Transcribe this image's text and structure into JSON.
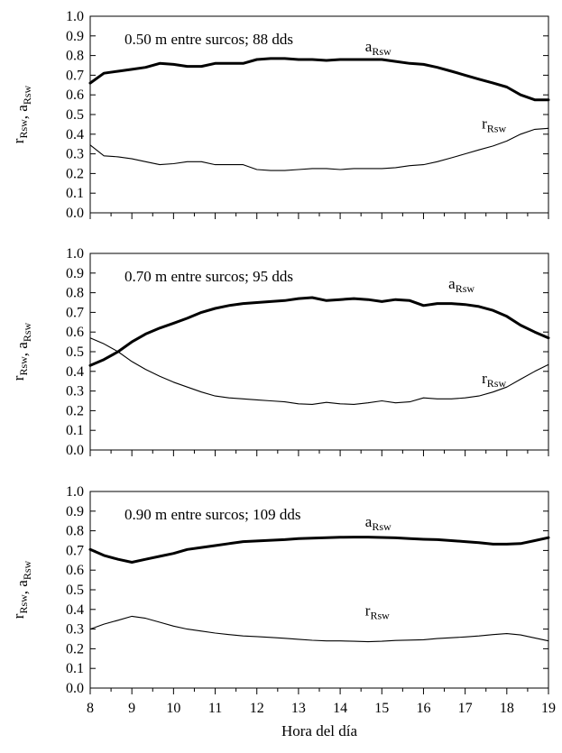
{
  "chart_data": [
    {
      "type": "line",
      "title": "0.50 m entre surcos; 88 dds",
      "ylabel": {
        "base1": "r",
        "sub1": "Rsw",
        "sep": ", ",
        "base2": "a",
        "sub2": "Rsw"
      },
      "xlabel": "",
      "xlim": [
        8,
        19
      ],
      "ylim": [
        0,
        1
      ],
      "xticks": [
        8,
        9,
        10,
        11,
        12,
        13,
        14,
        15,
        16,
        17,
        18,
        19
      ],
      "yticks": [
        "0.0",
        "0.1",
        "0.2",
        "0.3",
        "0.4",
        "0.5",
        "0.6",
        "0.7",
        "0.8",
        "0.9",
        "1.0"
      ],
      "series": [
        {
          "name": "aRsw",
          "label_base": "a",
          "label_sub": "Rsw",
          "label_at": [
            14.6,
            0.82
          ],
          "bold": true,
          "x": [
            8,
            8.33,
            8.67,
            9,
            9.33,
            9.67,
            10,
            10.33,
            10.67,
            11,
            11.33,
            11.67,
            12,
            12.33,
            12.67,
            13,
            13.33,
            13.67,
            14,
            14.33,
            14.67,
            15,
            15.33,
            15.67,
            16,
            16.33,
            16.67,
            17,
            17.33,
            17.67,
            18,
            18.33,
            18.67,
            19
          ],
          "y": [
            0.66,
            0.71,
            0.72,
            0.73,
            0.74,
            0.76,
            0.755,
            0.745,
            0.745,
            0.76,
            0.76,
            0.76,
            0.78,
            0.785,
            0.785,
            0.78,
            0.78,
            0.775,
            0.78,
            0.78,
            0.78,
            0.78,
            0.77,
            0.76,
            0.755,
            0.74,
            0.72,
            0.7,
            0.68,
            0.66,
            0.64,
            0.6,
            0.575,
            0.575
          ]
        },
        {
          "name": "rRsw",
          "label_base": "r",
          "label_sub": "Rsw",
          "label_at": [
            17.4,
            0.43
          ],
          "bold": false,
          "x": [
            8,
            8.33,
            8.67,
            9,
            9.33,
            9.67,
            10,
            10.33,
            10.67,
            11,
            11.33,
            11.67,
            12,
            12.33,
            12.67,
            13,
            13.33,
            13.67,
            14,
            14.33,
            14.67,
            15,
            15.33,
            15.67,
            16,
            16.33,
            16.67,
            17,
            17.33,
            17.67,
            18,
            18.33,
            18.67,
            19
          ],
          "y": [
            0.345,
            0.29,
            0.285,
            0.275,
            0.26,
            0.245,
            0.25,
            0.26,
            0.26,
            0.245,
            0.245,
            0.245,
            0.22,
            0.215,
            0.215,
            0.22,
            0.225,
            0.225,
            0.22,
            0.225,
            0.225,
            0.225,
            0.23,
            0.24,
            0.245,
            0.26,
            0.28,
            0.3,
            0.32,
            0.34,
            0.365,
            0.4,
            0.425,
            0.43
          ]
        }
      ]
    },
    {
      "type": "line",
      "title": "0.70 m entre surcos; 95 dds",
      "ylabel": {
        "base1": "r",
        "sub1": "Rsw",
        "sep": ", ",
        "base2": "a",
        "sub2": "Rsw"
      },
      "xlabel": "",
      "xlim": [
        8,
        19
      ],
      "ylim": [
        0,
        1
      ],
      "xticks": [
        8,
        9,
        10,
        11,
        12,
        13,
        14,
        15,
        16,
        17,
        18,
        19
      ],
      "yticks": [
        "0.0",
        "0.1",
        "0.2",
        "0.3",
        "0.4",
        "0.5",
        "0.6",
        "0.7",
        "0.8",
        "0.9",
        "1.0"
      ],
      "series": [
        {
          "name": "aRsw",
          "label_base": "a",
          "label_sub": "Rsw",
          "label_at": [
            16.6,
            0.82
          ],
          "bold": true,
          "x": [
            8,
            8.33,
            8.67,
            9,
            9.33,
            9.67,
            10,
            10.33,
            10.67,
            11,
            11.33,
            11.67,
            12,
            12.33,
            12.67,
            13,
            13.33,
            13.67,
            14,
            14.33,
            14.67,
            15,
            15.33,
            15.67,
            16,
            16.33,
            16.67,
            17,
            17.33,
            17.67,
            18,
            18.33,
            18.67,
            19
          ],
          "y": [
            0.43,
            0.46,
            0.5,
            0.55,
            0.59,
            0.62,
            0.645,
            0.67,
            0.7,
            0.72,
            0.735,
            0.745,
            0.75,
            0.755,
            0.76,
            0.77,
            0.775,
            0.76,
            0.765,
            0.77,
            0.765,
            0.755,
            0.765,
            0.76,
            0.735,
            0.745,
            0.745,
            0.74,
            0.73,
            0.71,
            0.68,
            0.635,
            0.6,
            0.57
          ]
        },
        {
          "name": "rRsw",
          "label_base": "r",
          "label_sub": "Rsw",
          "label_at": [
            17.4,
            0.34
          ],
          "bold": false,
          "x": [
            8,
            8.33,
            8.67,
            9,
            9.33,
            9.67,
            10,
            10.33,
            10.67,
            11,
            11.33,
            11.67,
            12,
            12.33,
            12.67,
            13,
            13.33,
            13.67,
            14,
            14.33,
            14.67,
            15,
            15.33,
            15.67,
            16,
            16.33,
            16.67,
            17,
            17.33,
            17.67,
            18,
            18.33,
            18.67,
            19
          ],
          "y": [
            0.57,
            0.54,
            0.5,
            0.45,
            0.41,
            0.375,
            0.345,
            0.32,
            0.295,
            0.275,
            0.265,
            0.26,
            0.255,
            0.25,
            0.245,
            0.235,
            0.232,
            0.242,
            0.235,
            0.232,
            0.24,
            0.25,
            0.24,
            0.245,
            0.265,
            0.26,
            0.26,
            0.265,
            0.275,
            0.295,
            0.32,
            0.36,
            0.4,
            0.435
          ]
        }
      ]
    },
    {
      "type": "line",
      "title": "0.90 m entre surcos; 109 dds",
      "ylabel": {
        "base1": "r",
        "sub1": "Rsw",
        "sep": ", ",
        "base2": "a",
        "sub2": "Rsw"
      },
      "xlabel": "Hora del día",
      "xlim": [
        8,
        19
      ],
      "ylim": [
        0,
        1
      ],
      "xticks": [
        8,
        9,
        10,
        11,
        12,
        13,
        14,
        15,
        16,
        17,
        18,
        19
      ],
      "yticks": [
        "0.0",
        "0.1",
        "0.2",
        "0.3",
        "0.4",
        "0.5",
        "0.6",
        "0.7",
        "0.8",
        "0.9",
        "1.0"
      ],
      "series": [
        {
          "name": "aRsw",
          "label_base": "a",
          "label_sub": "Rsw",
          "label_at": [
            14.6,
            0.82
          ],
          "bold": true,
          "x": [
            8,
            8.33,
            8.67,
            9,
            9.33,
            9.67,
            10,
            10.33,
            10.67,
            11,
            11.33,
            11.67,
            12,
            12.33,
            12.67,
            13,
            13.33,
            13.67,
            14,
            14.33,
            14.67,
            15,
            15.33,
            15.67,
            16,
            16.33,
            16.67,
            17,
            17.33,
            17.67,
            18,
            18.33,
            18.67,
            19
          ],
          "y": [
            0.705,
            0.675,
            0.655,
            0.64,
            0.655,
            0.67,
            0.685,
            0.705,
            0.715,
            0.725,
            0.735,
            0.745,
            0.748,
            0.752,
            0.755,
            0.76,
            0.763,
            0.765,
            0.767,
            0.768,
            0.768,
            0.766,
            0.764,
            0.76,
            0.757,
            0.755,
            0.75,
            0.745,
            0.74,
            0.732,
            0.732,
            0.735,
            0.75,
            0.765
          ]
        },
        {
          "name": "rRsw",
          "label_base": "r",
          "label_sub": "Rsw",
          "label_at": [
            14.6,
            0.37
          ],
          "bold": false,
          "x": [
            8,
            8.33,
            8.67,
            9,
            9.33,
            9.67,
            10,
            10.33,
            10.67,
            11,
            11.33,
            11.67,
            12,
            12.33,
            12.67,
            13,
            13.33,
            13.67,
            14,
            14.33,
            14.67,
            15,
            15.33,
            15.67,
            16,
            16.33,
            16.67,
            17,
            17.33,
            17.67,
            18,
            18.33,
            18.67,
            19
          ],
          "y": [
            0.3,
            0.325,
            0.345,
            0.365,
            0.355,
            0.335,
            0.315,
            0.3,
            0.29,
            0.28,
            0.272,
            0.265,
            0.262,
            0.258,
            0.253,
            0.248,
            0.243,
            0.24,
            0.24,
            0.238,
            0.236,
            0.238,
            0.242,
            0.244,
            0.246,
            0.252,
            0.256,
            0.26,
            0.265,
            0.272,
            0.277,
            0.27,
            0.255,
            0.24
          ]
        }
      ]
    }
  ]
}
